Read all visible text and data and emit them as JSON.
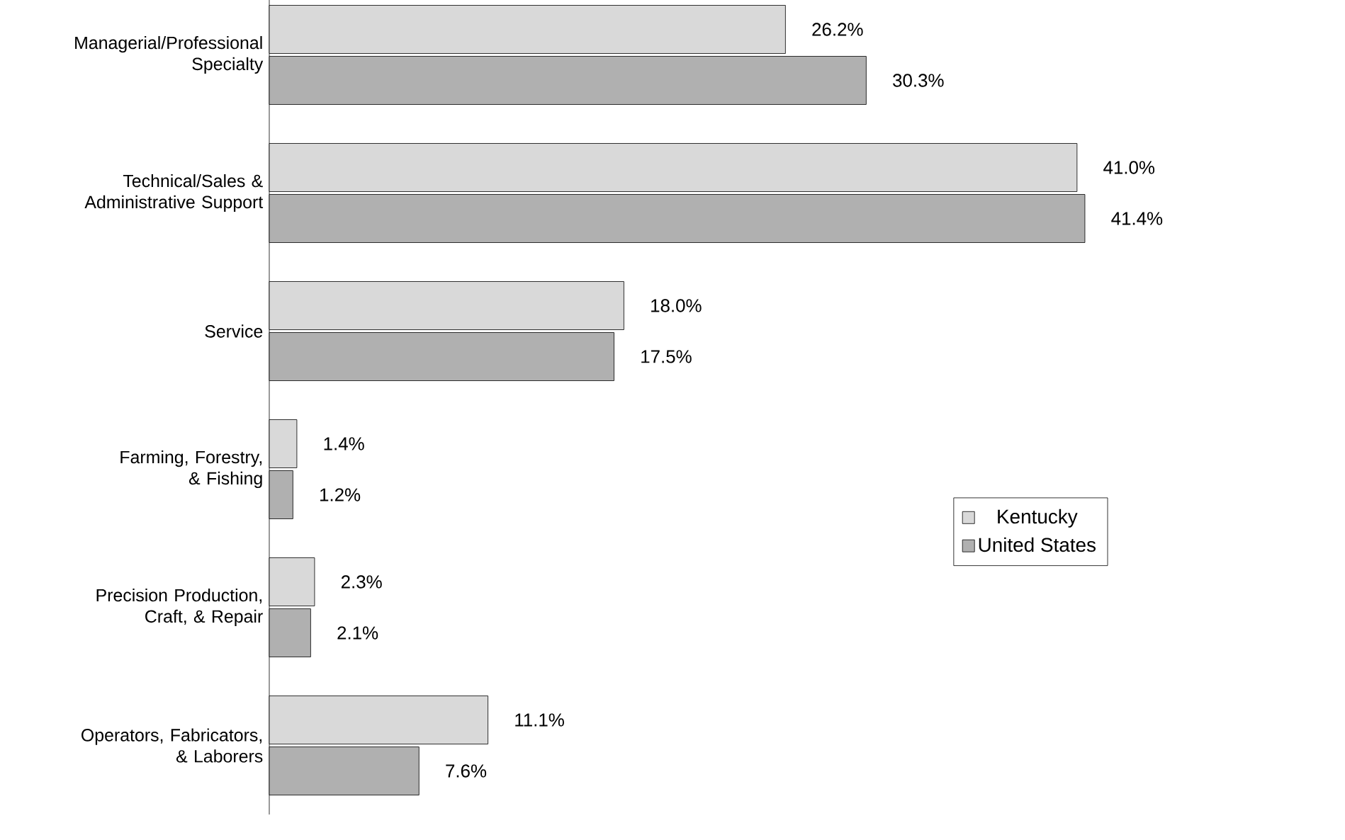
{
  "chart_data": {
    "type": "bar",
    "orientation": "horizontal",
    "categories": [
      "Managerial/Professional Specialty",
      "Technical/Sales & Administrative Support",
      "Service",
      "Farming, Forestry, & Fishing",
      "Precision Production, Craft, & Repair",
      "Operators, Fabricators, & Laborers"
    ],
    "series": [
      {
        "name": "Kentucky",
        "color": "#d9d9d9",
        "values": [
          26.2,
          41.0,
          18.0,
          1.4,
          2.3,
          11.1
        ],
        "value_labels": [
          "26.2%",
          "41.0%",
          "18.0%",
          "1.4%",
          "2.3%",
          "11.1%"
        ]
      },
      {
        "name": "United States",
        "color": "#b0b0b0",
        "values": [
          30.3,
          41.4,
          17.5,
          1.2,
          2.1,
          7.6
        ],
        "value_labels": [
          "30.3%",
          "41.4%",
          "17.5%",
          "1.2%",
          "2.1%",
          "7.6%"
        ]
      }
    ],
    "legend": "bottom right"
  }
}
